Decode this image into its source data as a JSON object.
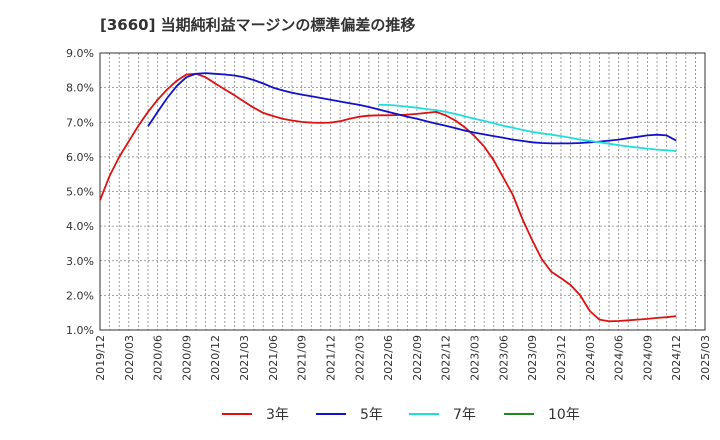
{
  "chart_data": {
    "type": "line",
    "title": "[3660]  当期純利益マージンの標準偏差の推移",
    "xlabel": "",
    "ylabel": "",
    "ylim": [
      1.0,
      9.0
    ],
    "y_ticks": [
      "1.0%",
      "2.0%",
      "3.0%",
      "4.0%",
      "5.0%",
      "6.0%",
      "7.0%",
      "8.0%",
      "9.0%"
    ],
    "x_ticks": [
      "2019/12",
      "2020/03",
      "2020/06",
      "2020/09",
      "2020/12",
      "2021/03",
      "2021/06",
      "2021/09",
      "2021/12",
      "2022/03",
      "2022/06",
      "2022/09",
      "2022/12",
      "2023/03",
      "2023/06",
      "2023/09",
      "2023/12",
      "2024/03",
      "2024/06",
      "2024/09",
      "2024/12",
      "2025/03"
    ],
    "grid": true,
    "legend_position": "bottom",
    "series": [
      {
        "name": "3年",
        "color": "#dd1111",
        "points": [
          [
            "2019/12",
            4.75
          ],
          [
            "2020/01",
            5.45
          ],
          [
            "2020/02",
            6.0
          ],
          [
            "2020/03",
            6.45
          ],
          [
            "2020/04",
            6.9
          ],
          [
            "2020/05",
            7.3
          ],
          [
            "2020/06",
            7.65
          ],
          [
            "2020/07",
            7.95
          ],
          [
            "2020/08",
            8.2
          ],
          [
            "2020/09",
            8.38
          ],
          [
            "2020/10",
            8.4
          ],
          [
            "2020/11",
            8.3
          ],
          [
            "2020/12",
            8.12
          ],
          [
            "2021/01",
            7.95
          ],
          [
            "2021/02",
            7.78
          ],
          [
            "2021/03",
            7.6
          ],
          [
            "2021/04",
            7.42
          ],
          [
            "2021/05",
            7.27
          ],
          [
            "2021/06",
            7.18
          ],
          [
            "2021/07",
            7.1
          ],
          [
            "2021/08",
            7.05
          ],
          [
            "2021/09",
            7.01
          ],
          [
            "2021/10",
            6.99
          ],
          [
            "2021/11",
            6.98
          ],
          [
            "2021/12",
            6.99
          ],
          [
            "2022/01",
            7.03
          ],
          [
            "2022/02",
            7.1
          ],
          [
            "2022/03",
            7.16
          ],
          [
            "2022/04",
            7.19
          ],
          [
            "2022/05",
            7.2
          ],
          [
            "2022/06",
            7.2
          ],
          [
            "2022/07",
            7.21
          ],
          [
            "2022/08",
            7.22
          ],
          [
            "2022/09",
            7.24
          ],
          [
            "2022/10",
            7.27
          ],
          [
            "2022/11",
            7.3
          ],
          [
            "2022/12",
            7.2
          ],
          [
            "2023/01",
            7.05
          ],
          [
            "2023/02",
            6.85
          ],
          [
            "2023/03",
            6.6
          ],
          [
            "2023/04",
            6.3
          ],
          [
            "2023/05",
            5.9
          ],
          [
            "2023/06",
            5.4
          ],
          [
            "2023/07",
            4.9
          ],
          [
            "2023/08",
            4.2
          ],
          [
            "2023/09",
            3.6
          ],
          [
            "2023/10",
            3.05
          ],
          [
            "2023/11",
            2.68
          ],
          [
            "2023/12",
            2.5
          ],
          [
            "2024/01",
            2.3
          ],
          [
            "2024/02",
            2.0
          ],
          [
            "2024/03",
            1.55
          ],
          [
            "2024/04",
            1.3
          ],
          [
            "2024/05",
            1.25
          ],
          [
            "2024/06",
            1.26
          ],
          [
            "2024/07",
            1.28
          ],
          [
            "2024/08",
            1.3
          ],
          [
            "2024/09",
            1.32
          ],
          [
            "2024/10",
            1.35
          ],
          [
            "2024/11",
            1.37
          ],
          [
            "2024/12",
            1.4
          ]
        ]
      },
      {
        "name": "5年",
        "color": "#1111cc",
        "points": [
          [
            "2020/05",
            6.88
          ],
          [
            "2020/06",
            7.3
          ],
          [
            "2020/07",
            7.7
          ],
          [
            "2020/08",
            8.05
          ],
          [
            "2020/09",
            8.3
          ],
          [
            "2020/10",
            8.4
          ],
          [
            "2020/11",
            8.42
          ],
          [
            "2020/12",
            8.4
          ],
          [
            "2021/01",
            8.38
          ],
          [
            "2021/02",
            8.35
          ],
          [
            "2021/03",
            8.3
          ],
          [
            "2021/04",
            8.22
          ],
          [
            "2021/05",
            8.12
          ],
          [
            "2021/06",
            8.0
          ],
          [
            "2021/07",
            7.92
          ],
          [
            "2021/08",
            7.85
          ],
          [
            "2021/09",
            7.8
          ],
          [
            "2021/10",
            7.75
          ],
          [
            "2021/11",
            7.7
          ],
          [
            "2021/12",
            7.65
          ],
          [
            "2022/01",
            7.6
          ],
          [
            "2022/02",
            7.55
          ],
          [
            "2022/03",
            7.5
          ],
          [
            "2022/04",
            7.44
          ],
          [
            "2022/05",
            7.37
          ],
          [
            "2022/06",
            7.3
          ],
          [
            "2022/07",
            7.23
          ],
          [
            "2022/08",
            7.16
          ],
          [
            "2022/09",
            7.1
          ],
          [
            "2022/10",
            7.03
          ],
          [
            "2022/11",
            6.96
          ],
          [
            "2022/12",
            6.9
          ],
          [
            "2023/01",
            6.83
          ],
          [
            "2023/02",
            6.76
          ],
          [
            "2023/03",
            6.7
          ],
          [
            "2023/04",
            6.65
          ],
          [
            "2023/05",
            6.6
          ],
          [
            "2023/06",
            6.55
          ],
          [
            "2023/07",
            6.5
          ],
          [
            "2023/08",
            6.46
          ],
          [
            "2023/09",
            6.42
          ],
          [
            "2023/10",
            6.4
          ],
          [
            "2023/11",
            6.39
          ],
          [
            "2023/12",
            6.39
          ],
          [
            "2024/01",
            6.39
          ],
          [
            "2024/02",
            6.4
          ],
          [
            "2024/03",
            6.42
          ],
          [
            "2024/04",
            6.44
          ],
          [
            "2024/05",
            6.47
          ],
          [
            "2024/06",
            6.5
          ],
          [
            "2024/07",
            6.54
          ],
          [
            "2024/08",
            6.58
          ],
          [
            "2024/09",
            6.62
          ],
          [
            "2024/10",
            6.64
          ],
          [
            "2024/11",
            6.62
          ],
          [
            "2024/12",
            6.47
          ]
        ]
      },
      {
        "name": "7年",
        "color": "#22dddd",
        "points": [
          [
            "2022/05",
            7.5
          ],
          [
            "2022/06",
            7.5
          ],
          [
            "2022/07",
            7.48
          ],
          [
            "2022/08",
            7.45
          ],
          [
            "2022/09",
            7.42
          ],
          [
            "2022/10",
            7.38
          ],
          [
            "2022/11",
            7.35
          ],
          [
            "2022/12",
            7.3
          ],
          [
            "2023/01",
            7.24
          ],
          [
            "2023/02",
            7.17
          ],
          [
            "2023/03",
            7.1
          ],
          [
            "2023/04",
            7.04
          ],
          [
            "2023/05",
            6.97
          ],
          [
            "2023/06",
            6.9
          ],
          [
            "2023/07",
            6.84
          ],
          [
            "2023/08",
            6.78
          ],
          [
            "2023/09",
            6.72
          ],
          [
            "2023/10",
            6.68
          ],
          [
            "2023/11",
            6.64
          ],
          [
            "2023/12",
            6.6
          ],
          [
            "2024/01",
            6.55
          ],
          [
            "2024/02",
            6.5
          ],
          [
            "2024/03",
            6.46
          ],
          [
            "2024/04",
            6.42
          ],
          [
            "2024/05",
            6.38
          ],
          [
            "2024/06",
            6.34
          ],
          [
            "2024/07",
            6.3
          ],
          [
            "2024/08",
            6.27
          ],
          [
            "2024/09",
            6.24
          ],
          [
            "2024/10",
            6.21
          ],
          [
            "2024/11",
            6.19
          ],
          [
            "2024/12",
            6.17
          ]
        ]
      },
      {
        "name": "10年",
        "color": "#228822",
        "points": []
      }
    ]
  }
}
